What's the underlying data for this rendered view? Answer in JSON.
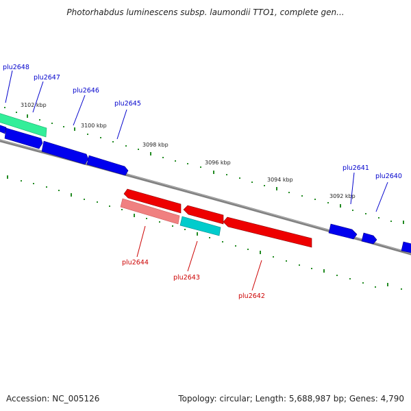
{
  "title": "Photorhabdus luminescens subsp. laumondii TTO1, complete gen...",
  "footer": {
    "accession": "Accession: NC_005126",
    "summary": "Topology: circular; Length: 5,688,987 bp; Genes: 4,790"
  },
  "ruler_ticks": [
    "3102 kbp",
    "3100 kbp",
    "3098 kbp",
    "3096 kbp",
    "3094 kbp",
    "3092 kbp"
  ],
  "genes": {
    "forward": [
      "plu2648",
      "plu2647",
      "plu2646",
      "plu2645",
      "plu2641",
      "plu2640"
    ],
    "reverse": [
      "plu2644",
      "plu2643",
      "plu2642"
    ]
  },
  "colors": {
    "forward_label": "#0000cc",
    "reverse_label": "#cc0000",
    "forward_gene": "#0000ee",
    "reverse_gene": "#ee0000",
    "reverse_gene_light": "#f08080",
    "highlight_green": "#33ee99",
    "highlight_cyan": "#00cccc",
    "backbone": "#808080",
    "tick_green": "#228b22"
  }
}
